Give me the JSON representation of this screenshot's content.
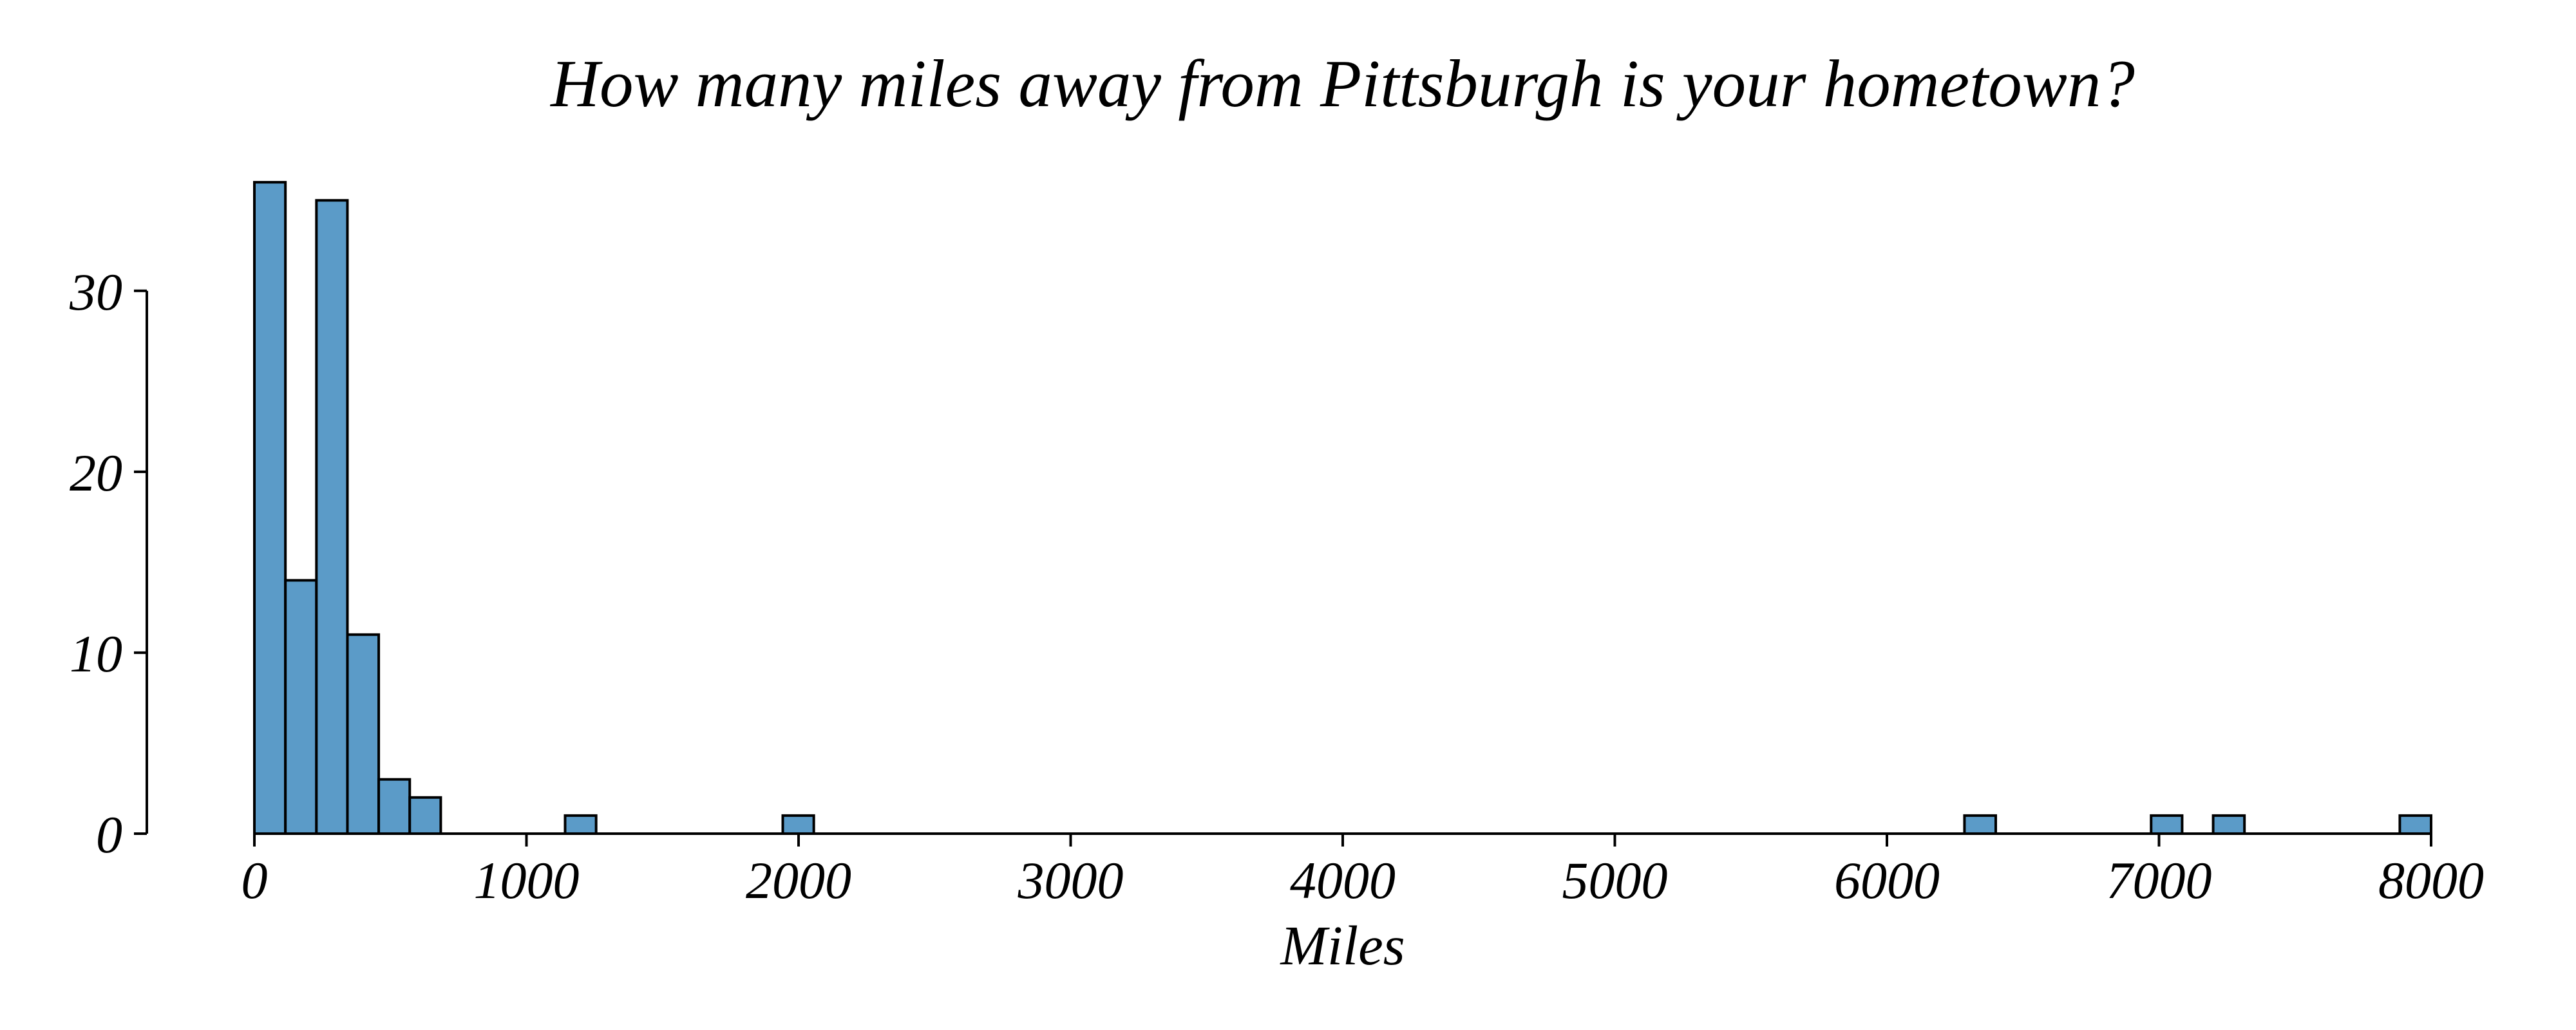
{
  "chart_data": {
    "type": "bar",
    "title": "How many miles away from Pittsburgh is your hometown?",
    "xlabel": "Miles",
    "ylabel": "",
    "xlim": [
      0,
      8000
    ],
    "ylim": [
      0,
      37
    ],
    "x_ticks": [
      "0",
      "1000",
      "2000",
      "3000",
      "4000",
      "5000",
      "6000",
      "7000",
      "8000"
    ],
    "y_ticks": [
      "0",
      "10",
      "20",
      "30"
    ],
    "grid": false,
    "legend": "none",
    "bar_color": "#5b9bc8",
    "bar_edge_color": "#000000",
    "bins": [
      {
        "x0": 0,
        "x1": 114,
        "count": 36
      },
      {
        "x0": 114,
        "x1": 228,
        "count": 14
      },
      {
        "x0": 228,
        "x1": 342,
        "count": 35
      },
      {
        "x0": 342,
        "x1": 457,
        "count": 11
      },
      {
        "x0": 457,
        "x1": 571,
        "count": 3
      },
      {
        "x0": 571,
        "x1": 685,
        "count": 2
      },
      {
        "x0": 1142,
        "x1": 1256,
        "count": 1
      },
      {
        "x0": 1942,
        "x1": 2056,
        "count": 1
      },
      {
        "x0": 6285,
        "x1": 6400,
        "count": 1
      },
      {
        "x0": 6971,
        "x1": 7085,
        "count": 1
      },
      {
        "x0": 7199,
        "x1": 7314,
        "count": 1
      },
      {
        "x0": 7885,
        "x1": 8000,
        "count": 1
      }
    ]
  }
}
